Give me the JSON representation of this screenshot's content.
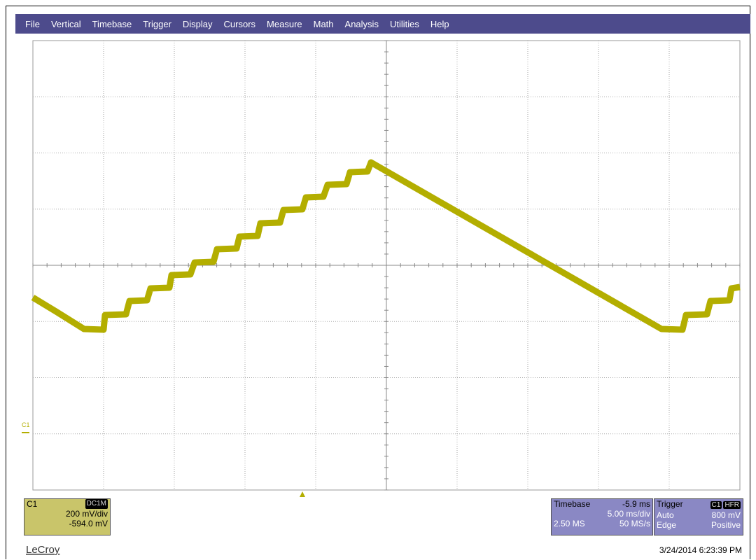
{
  "menu": [
    "File",
    "Vertical",
    "Timebase",
    "Trigger",
    "Display",
    "Cursors",
    "Measure",
    "Math",
    "Analysis",
    "Utilities",
    "Help"
  ],
  "trace_marker": "C1",
  "channel": {
    "name": "C1",
    "coupling": "DC1M",
    "scale": "200 mV/div",
    "offset": "-594.0 mV"
  },
  "timebase": {
    "label": "Timebase",
    "delay": "-5.9 ms",
    "scale": "5.00 ms/div",
    "samples": "2.50 MS",
    "rate": "50 MS/s"
  },
  "trigger": {
    "label": "Trigger",
    "source": "C1",
    "filter": "HFR",
    "mode": "Auto",
    "level": "800 mV",
    "type": "Edge",
    "slope": "Positive"
  },
  "brand": "LeCroy",
  "datetime": "3/24/2014 6:23:39 PM"
}
